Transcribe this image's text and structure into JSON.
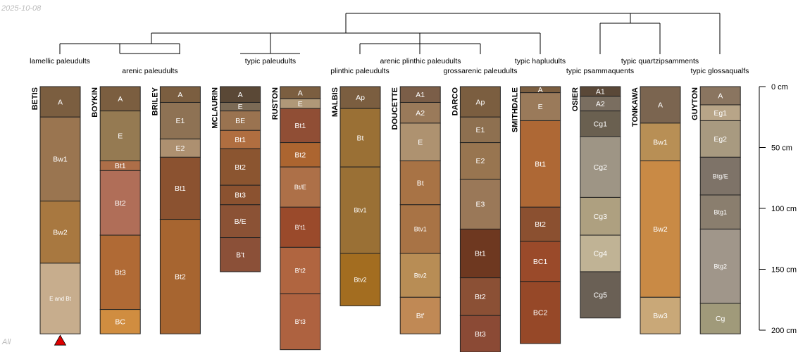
{
  "date_stamp": "2025-10-08",
  "corner_label": "All",
  "chart_data": {
    "type": "soil-profile-sketch",
    "title": "",
    "depth_unit": "cm",
    "depth_range": [
      0,
      200
    ],
    "depth_ticks": [
      0,
      50,
      100,
      150,
      200
    ],
    "depth_tick_labels": [
      "0 cm",
      "50 cm",
      "100 cm",
      "150 cm",
      "200 cm"
    ],
    "taxa": [
      {
        "label": "lamellic paleudults"
      },
      {
        "label": "arenic paleudults"
      },
      {
        "label": "typic paleudults"
      },
      {
        "label": "plinthic paleudults"
      },
      {
        "label": "arenic plinthic paleudults"
      },
      {
        "label": "grossarenic paleudults"
      },
      {
        "label": "typic hapludults"
      },
      {
        "label": "typic psammaquents"
      },
      {
        "label": "typic quartzipsamments"
      },
      {
        "label": "typic glossaqualfs"
      }
    ],
    "profiles": [
      {
        "name": "BETIS",
        "depth_truncated": true,
        "horizons": [
          {
            "name": "A",
            "top": 0,
            "bottom": 25,
            "color": "#7b5e40"
          },
          {
            "name": "Bw1",
            "top": 25,
            "bottom": 94,
            "color": "#9a7550"
          },
          {
            "name": "Bw2",
            "top": 94,
            "bottom": 145,
            "color": "#a87840"
          },
          {
            "name": "E and Bt",
            "top": 145,
            "bottom": 203,
            "color": "#c7ad8d"
          }
        ]
      },
      {
        "name": "BOYKIN",
        "horizons": [
          {
            "name": "A",
            "top": 0,
            "bottom": 20,
            "color": "#7b5e40"
          },
          {
            "name": "E",
            "top": 20,
            "bottom": 61,
            "color": "#957a52"
          },
          {
            "name": "Bt1",
            "top": 61,
            "bottom": 69,
            "color": "#ad6e48"
          },
          {
            "name": "Bt2",
            "top": 69,
            "bottom": 122,
            "color": "#b06e58"
          },
          {
            "name": "Bt3",
            "top": 122,
            "bottom": 183,
            "color": "#b06a35"
          },
          {
            "name": "BC",
            "top": 183,
            "bottom": 203,
            "color": "#d08d40"
          }
        ]
      },
      {
        "name": "BRILEY",
        "horizons": [
          {
            "name": "A",
            "top": 0,
            "bottom": 13,
            "color": "#7b5e40"
          },
          {
            "name": "E1",
            "top": 13,
            "bottom": 43,
            "color": "#8e7254"
          },
          {
            "name": "E2",
            "top": 43,
            "bottom": 58,
            "color": "#ad9070"
          },
          {
            "name": "Bt1",
            "top": 58,
            "bottom": 109,
            "color": "#8b5230"
          },
          {
            "name": "Bt2",
            "top": 109,
            "bottom": 203,
            "color": "#a76530"
          }
        ]
      },
      {
        "name": "MCLAURIN",
        "horizons": [
          {
            "name": "A",
            "top": 0,
            "bottom": 13,
            "color": "#5a4836"
          },
          {
            "name": "E",
            "top": 13,
            "bottom": 20,
            "color": "#7b6a55"
          },
          {
            "name": "BE",
            "top": 20,
            "bottom": 36,
            "color": "#9a7350"
          },
          {
            "name": "Bt1",
            "top": 36,
            "bottom": 51,
            "color": "#b06e40"
          },
          {
            "name": "Bt2",
            "top": 51,
            "bottom": 81,
            "color": "#8b5530"
          },
          {
            "name": "Bt3",
            "top": 81,
            "bottom": 97,
            "color": "#8b5230"
          },
          {
            "name": "B/E",
            "top": 97,
            "bottom": 124,
            "color": "#8b5235"
          },
          {
            "name": "B't",
            "top": 124,
            "bottom": 152,
            "color": "#8b5038"
          }
        ]
      },
      {
        "name": "RUSTON",
        "horizons": [
          {
            "name": "A",
            "top": 0,
            "bottom": 10,
            "color": "#7b5e40"
          },
          {
            "name": "E",
            "top": 10,
            "bottom": 18,
            "color": "#b09878"
          },
          {
            "name": "Bt1",
            "top": 18,
            "bottom": 46,
            "color": "#904e35"
          },
          {
            "name": "Bt2",
            "top": 46,
            "bottom": 66,
            "color": "#ac6530"
          },
          {
            "name": "Bt/E",
            "top": 66,
            "bottom": 99,
            "color": "#ad7048"
          },
          {
            "name": "B't1",
            "top": 99,
            "bottom": 132,
            "color": "#9a4a2b"
          },
          {
            "name": "B't2",
            "top": 132,
            "bottom": 170,
            "color": "#b06540"
          },
          {
            "name": "B't3",
            "top": 170,
            "bottom": 216,
            "color": "#ae6240"
          }
        ]
      },
      {
        "name": "MALBIS",
        "horizons": [
          {
            "name": "Ap",
            "top": 0,
            "bottom": 18,
            "color": "#7b5e40"
          },
          {
            "name": "Bt",
            "top": 18,
            "bottom": 66,
            "color": "#9a7035"
          },
          {
            "name": "Btv1",
            "top": 66,
            "bottom": 137,
            "color": "#9a7035"
          },
          {
            "name": "Btv2",
            "top": 137,
            "bottom": 180,
            "color": "#a36d20"
          }
        ]
      },
      {
        "name": "DOUCETTE",
        "horizons": [
          {
            "name": "A1",
            "top": 0,
            "bottom": 13,
            "color": "#7b5e48"
          },
          {
            "name": "A2",
            "top": 13,
            "bottom": 30,
            "color": "#9a7a5a"
          },
          {
            "name": "E",
            "top": 30,
            "bottom": 61,
            "color": "#ae9270"
          },
          {
            "name": "Bt",
            "top": 61,
            "bottom": 97,
            "color": "#a87345"
          },
          {
            "name": "Btv1",
            "top": 97,
            "bottom": 137,
            "color": "#a87345"
          },
          {
            "name": "Btv2",
            "top": 137,
            "bottom": 173,
            "color": "#b88d55"
          },
          {
            "name": "Bt'",
            "top": 173,
            "bottom": 203,
            "color": "#c08955"
          }
        ]
      },
      {
        "name": "DARCO",
        "horizons": [
          {
            "name": "Ap",
            "top": 0,
            "bottom": 25,
            "color": "#7b5e40"
          },
          {
            "name": "E1",
            "top": 25,
            "bottom": 46,
            "color": "#8e7050"
          },
          {
            "name": "E2",
            "top": 46,
            "bottom": 76,
            "color": "#987550"
          },
          {
            "name": "E3",
            "top": 76,
            "bottom": 117,
            "color": "#9a7858"
          },
          {
            "name": "Bt1",
            "top": 117,
            "bottom": 157,
            "color": "#6e3820"
          },
          {
            "name": "Bt2",
            "top": 157,
            "bottom": 188,
            "color": "#8b5035"
          },
          {
            "name": "Bt3",
            "top": 188,
            "bottom": 218,
            "color": "#8b4a35"
          }
        ]
      },
      {
        "name": "SMITHDALE",
        "horizons": [
          {
            "name": "A",
            "top": 0,
            "bottom": 5,
            "color": "#7b5e40"
          },
          {
            "name": "E",
            "top": 5,
            "bottom": 28,
            "color": "#9a7a5a"
          },
          {
            "name": "Bt1",
            "top": 28,
            "bottom": 99,
            "color": "#ae6835"
          },
          {
            "name": "Bt2",
            "top": 99,
            "bottom": 127,
            "color": "#8b5030"
          },
          {
            "name": "BC1",
            "top": 127,
            "bottom": 160,
            "color": "#9a4a2a"
          },
          {
            "name": "BC2",
            "top": 160,
            "bottom": 211,
            "color": "#964828"
          }
        ]
      },
      {
        "name": "OSIER",
        "horizons": [
          {
            "name": "A1",
            "top": 0,
            "bottom": 8,
            "color": "#5a4838"
          },
          {
            "name": "A2",
            "top": 8,
            "bottom": 20,
            "color": "#7a6e60"
          },
          {
            "name": "Cg1",
            "top": 20,
            "bottom": 41,
            "color": "#6a6050"
          },
          {
            "name": "Cg2",
            "top": 41,
            "bottom": 91,
            "color": "#9e9585"
          },
          {
            "name": "Cg3",
            "top": 91,
            "bottom": 122,
            "color": "#aea080"
          },
          {
            "name": "Cg4",
            "top": 122,
            "bottom": 152,
            "color": "#c0b395"
          },
          {
            "name": "Cg5",
            "top": 152,
            "bottom": 190,
            "color": "#6a6055"
          }
        ]
      },
      {
        "name": "TONKAWA",
        "horizons": [
          {
            "name": "A",
            "top": 0,
            "bottom": 30,
            "color": "#7b6550"
          },
          {
            "name": "Bw1",
            "top": 30,
            "bottom": 61,
            "color": "#b88f55"
          },
          {
            "name": "Bw2",
            "top": 61,
            "bottom": 173,
            "color": "#c98a45"
          },
          {
            "name": "Bw3",
            "top": 173,
            "bottom": 203,
            "color": "#c9a878"
          }
        ]
      },
      {
        "name": "GUYTON",
        "horizons": [
          {
            "name": "A",
            "top": 0,
            "bottom": 15,
            "color": "#8a7560"
          },
          {
            "name": "Eg1",
            "top": 15,
            "bottom": 28,
            "color": "#b8a588"
          },
          {
            "name": "Eg2",
            "top": 28,
            "bottom": 58,
            "color": "#a89a80"
          },
          {
            "name": "Btg/E",
            "top": 58,
            "bottom": 89,
            "color": "#7e7368"
          },
          {
            "name": "Btg1",
            "top": 89,
            "bottom": 117,
            "color": "#8a7e6e"
          },
          {
            "name": "Btg2",
            "top": 117,
            "bottom": 178,
            "color": "#a0968a"
          },
          {
            "name": "Cg",
            "top": 178,
            "bottom": 203,
            "color": "#a09a7a"
          }
        ]
      }
    ]
  }
}
